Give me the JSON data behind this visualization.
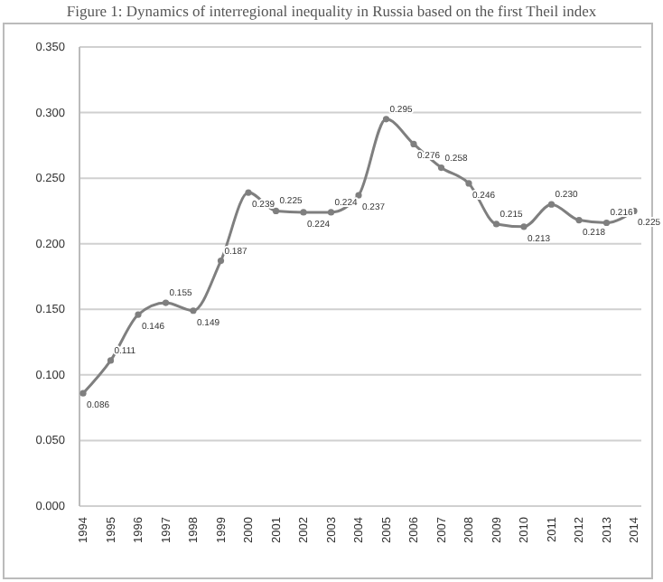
{
  "chart_data": {
    "type": "line",
    "title": "Figure 1: Dynamics of interregional inequality in Russia based on the first Theil index",
    "categories": [
      "1994",
      "1995",
      "1996",
      "1997",
      "1998",
      "1999",
      "2000",
      "2001",
      "2002",
      "2003",
      "2004",
      "2005",
      "2006",
      "2007",
      "2008",
      "2009",
      "2010",
      "2011",
      "2012",
      "2013",
      "2014"
    ],
    "series": [
      {
        "color": "#7f7f7f",
        "values": [
          0.086,
          0.111,
          0.146,
          0.155,
          0.149,
          0.187,
          0.239,
          0.225,
          0.224,
          0.224,
          0.237,
          0.295,
          0.276,
          0.258,
          0.246,
          0.215,
          0.213,
          0.23,
          0.218,
          0.216,
          0.225
        ],
        "value_labels": [
          "0.086",
          "0.111",
          "0.146",
          "0.155",
          "0.149",
          "0.187",
          "0.239",
          "0.225",
          "0.224",
          "0.224",
          "0.237",
          "0.295",
          "0.276",
          "0.258",
          "0.246",
          "0.215",
          "0.213",
          "0.230",
          "0.218",
          "0.216",
          "0.225"
        ]
      }
    ],
    "ylim": [
      0,
      0.35
    ],
    "yticks": [
      {
        "value": 0,
        "label": "0.000"
      },
      {
        "value": 0.05,
        "label": "0.050"
      },
      {
        "value": 0.1,
        "label": "0.100"
      },
      {
        "value": 0.15,
        "label": "0.150"
      },
      {
        "value": 0.2,
        "label": "0.200"
      },
      {
        "value": 0.25,
        "label": "0.250"
      },
      {
        "value": 0.3,
        "label": "0.300"
      },
      {
        "value": 0.35,
        "label": "0.350"
      }
    ],
    "grid": "y",
    "marker": "circle",
    "line_style": "solid"
  }
}
